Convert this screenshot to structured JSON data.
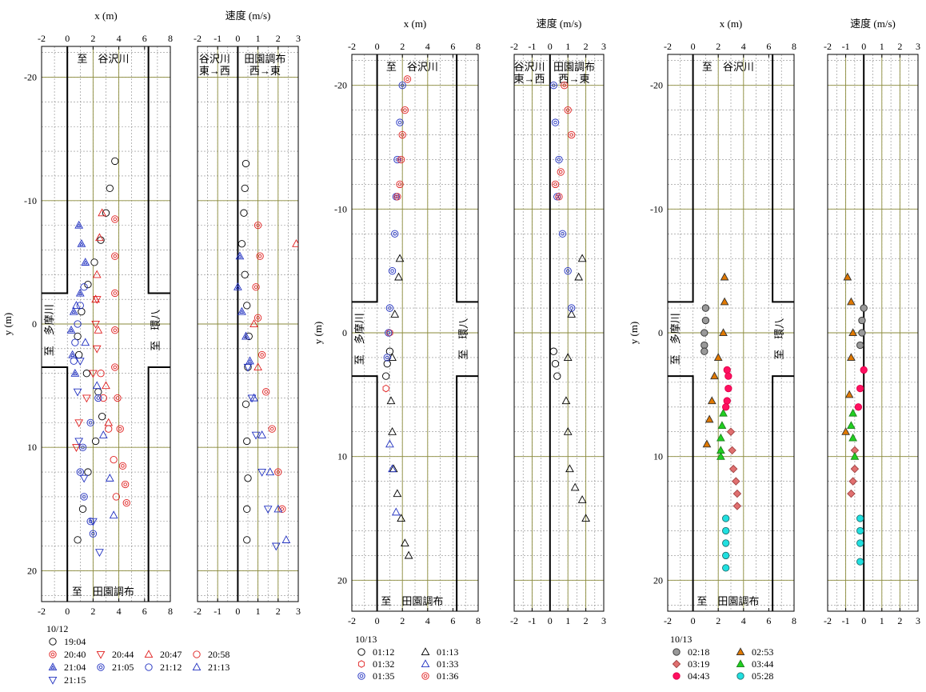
{
  "chart_data": [
    {
      "type": "scatter",
      "panel": "position",
      "xlabel": "x (m)",
      "ylabel": "y (m)",
      "xticks": [
        "-2",
        "0",
        "2",
        "4",
        "6",
        "8"
      ],
      "yticks": [
        "-20",
        "-10",
        "0",
        "10",
        "20"
      ],
      "xlim": [
        -2,
        8
      ],
      "ylim": [
        -22.5,
        22.5
      ],
      "road_labels": {
        "north": "至　谷沢川",
        "south": "至　田園調布",
        "west": "至　多摩川",
        "east": "至　環八"
      },
      "date": "10/12",
      "legend": [
        "19:04",
        "20:40",
        "20:44",
        "20:47",
        "20:58",
        "21:04",
        "21:05",
        "21:12",
        "21:13",
        "21:15"
      ],
      "series": [
        {
          "name": "19:04",
          "x": [
            3.7,
            3.3,
            3.0,
            2.6,
            2.1,
            1.6,
            1.1,
            0.8,
            0.9,
            1.5,
            2.4,
            2.7,
            2.2,
            1.6,
            1.2,
            0.8
          ],
          "y": [
            -13.2,
            -11.0,
            -9.0,
            -6.8,
            -5.0,
            -3.2,
            -1.0,
            1.0,
            2.5,
            4.0,
            5.5,
            7.5,
            9.5,
            12.0,
            15.0,
            17.5
          ]
        },
        {
          "name": "20:40",
          "x": [
            3.7,
            3.7,
            3.7,
            3.7,
            3.7,
            3.9,
            4.1,
            4.3,
            4.5,
            4.6
          ],
          "y": [
            -8.5,
            -5.5,
            -2.5,
            0.5,
            3.5,
            6.0,
            8.5,
            11.5,
            13.0,
            14.5
          ]
        },
        {
          "name": "20:44",
          "x": [
            2.3,
            2.2,
            2.3,
            2.0,
            1.5,
            0.9,
            0.7
          ],
          "y": [
            -2.0,
            0.0,
            2.0,
            4.0,
            6.0,
            8.0,
            10.0
          ]
        },
        {
          "name": "20:47",
          "x": [
            2.7,
            2.5,
            2.3,
            2.2,
            2.4,
            3.0,
            3.2
          ],
          "y": [
            -9.0,
            -7.0,
            -4.0,
            -2.0,
            0.5,
            5.0,
            8.0
          ]
        },
        {
          "name": "20:58",
          "x": [
            2.6,
            2.8,
            3.2,
            3.6,
            3.8
          ],
          "y": [
            4.0,
            6.0,
            8.5,
            11.0,
            14.0
          ]
        },
        {
          "name": "21:04",
          "x": [
            0.9,
            1.1,
            1.4,
            1.0,
            0.5,
            0.3,
            0.4,
            0.6
          ],
          "y": [
            -8.0,
            -6.5,
            -5.0,
            -2.5,
            -1.0,
            0.5,
            2.5,
            4.0
          ]
        },
        {
          "name": "21:05",
          "x": [
            2.4,
            1.8,
            1.2,
            1.0,
            1.3,
            1.8,
            2.0
          ],
          "y": [
            6.0,
            8.0,
            10.0,
            12.0,
            14.0,
            16.0,
            17.0
          ]
        },
        {
          "name": "21:12",
          "x": [
            1.3,
            1.0,
            0.8,
            0.6,
            0.5
          ],
          "y": [
            -3.0,
            -1.5,
            0.0,
            1.5,
            3.0
          ]
        },
        {
          "name": "21:13",
          "x": [
            0.7,
            1.4,
            2.3,
            2.8,
            3.3,
            3.6
          ],
          "y": [
            -1.5,
            1.5,
            5.0,
            9.0,
            12.5,
            15.5
          ]
        },
        {
          "name": "21:15",
          "x": [
            1.0,
            0.8,
            0.9,
            1.3,
            2.0,
            2.5
          ],
          "y": [
            3.0,
            5.5,
            9.5,
            12.5,
            16.0,
            18.5
          ]
        }
      ]
    },
    {
      "type": "scatter",
      "panel": "speed",
      "xlabel": "速度 (m/s)",
      "xticks": [
        "-2",
        "-1",
        "0",
        "1",
        "2",
        "3"
      ],
      "xlim": [
        -2,
        3
      ],
      "ylim": [
        -22.5,
        22.5
      ],
      "direction_labels": [
        "谷沢川",
        "東→西",
        "田園調布",
        "西→東"
      ],
      "series": [
        {
          "name": "19:04",
          "x": [
            0.4,
            0.35,
            0.3,
            0.2,
            0.35,
            0.45,
            0.55,
            0.5,
            0.4,
            0.45,
            0.5,
            0.45,
            0.45
          ],
          "y": [
            -13.0,
            -11.0,
            -9.0,
            -6.5,
            -4.0,
            -1.5,
            1.0,
            3.5,
            6.5,
            9.5,
            12.5,
            15.0,
            17.5
          ]
        },
        {
          "name": "20:40",
          "x": [
            1.0,
            1.1,
            0.9,
            1.0,
            1.2,
            1.4,
            1.7,
            2.0,
            2.2
          ],
          "y": [
            -8.0,
            -5.5,
            -3.0,
            -0.5,
            2.5,
            5.5,
            8.5,
            12.0,
            15.0
          ]
        },
        {
          "name": "20:47",
          "x": [
            2.9,
            0.8,
            1.0
          ],
          "y": [
            -6.5,
            0.0,
            3.5
          ]
        },
        {
          "name": "21:04",
          "x": [
            0.1,
            0.0,
            0.2,
            0.4,
            0.6
          ],
          "y": [
            -5.5,
            -3.0,
            -1.0,
            1.0,
            3.0
          ]
        },
        {
          "name": "21:13",
          "x": [
            0.8,
            1.2,
            1.6,
            2.0,
            2.4
          ],
          "y": [
            6.0,
            9.0,
            12.0,
            15.0,
            17.5
          ]
        },
        {
          "name": "21:15",
          "x": [
            0.5,
            0.7,
            0.9,
            1.2,
            1.5,
            1.9
          ],
          "y": [
            3.5,
            6.0,
            9.0,
            12.0,
            15.0,
            18.0
          ]
        }
      ]
    },
    {
      "type": "scatter",
      "panel": "position",
      "xlabel": "x (m)",
      "ylabel": "y (m)",
      "xticks": [
        "-2",
        "0",
        "2",
        "4",
        "6",
        "8"
      ],
      "yticks": [
        "-20",
        "-10",
        "0",
        "10",
        "20"
      ],
      "xlim": [
        -2,
        8
      ],
      "ylim": [
        -22.5,
        22.5
      ],
      "road_labels": {
        "north": "至　谷沢川",
        "south": "至　田園調布",
        "west": "至　多摩川",
        "east": "至　環八"
      },
      "date": "10/13",
      "legend": [
        "01:12",
        "01:13",
        "01:32",
        "01:33",
        "01:35",
        "01:36"
      ],
      "series": [
        {
          "name": "01:12",
          "x": [
            1.0,
            0.8,
            0.7
          ],
          "y": [
            1.5,
            2.5,
            3.5
          ]
        },
        {
          "name": "01:13",
          "x": [
            1.8,
            1.7,
            1.4,
            1.2,
            1.1,
            1.2,
            1.3,
            1.6,
            1.9,
            2.2,
            2.5
          ],
          "y": [
            -6.0,
            -4.5,
            -1.5,
            2.0,
            5.5,
            8.0,
            11.0,
            13.0,
            15.0,
            17.0,
            18.0
          ]
        },
        {
          "name": "01:32",
          "x": [
            1.0,
            0.7
          ],
          "y": [
            0.0,
            4.5
          ]
        },
        {
          "name": "01:33",
          "x": [
            1.0,
            1.2,
            1.5
          ],
          "y": [
            9.0,
            11.0,
            14.5
          ]
        },
        {
          "name": "01:35",
          "x": [
            2.0,
            1.8,
            1.6,
            1.5,
            1.4,
            1.2,
            1.0,
            0.9,
            0.8
          ],
          "y": [
            -20.0,
            -17.0,
            -14.0,
            -11.0,
            -8.0,
            -5.0,
            -2.0,
            0.0,
            2.0
          ]
        },
        {
          "name": "01:36",
          "x": [
            2.4,
            2.2,
            2.0,
            1.9,
            1.8,
            1.6
          ],
          "y": [
            -20.5,
            -18.0,
            -16.0,
            -14.0,
            -12.0,
            -11.0
          ]
        }
      ]
    },
    {
      "type": "scatter",
      "panel": "speed",
      "xlabel": "速度 (m/s)",
      "xticks": [
        "-2",
        "-1",
        "0",
        "1",
        "2",
        "3"
      ],
      "xlim": [
        -2,
        3
      ],
      "ylim": [
        -22.5,
        22.5
      ],
      "direction_labels": [
        "谷沢川",
        "東→西",
        "田園調布",
        "西→東"
      ],
      "series": [
        {
          "name": "01:12",
          "x": [
            0.2,
            0.3,
            0.4
          ],
          "y": [
            1.5,
            2.5,
            3.5
          ]
        },
        {
          "name": "01:13",
          "x": [
            1.8,
            1.6,
            1.2,
            1.0,
            0.9,
            1.0,
            1.1,
            1.4,
            1.8,
            2.0
          ],
          "y": [
            -6.0,
            -4.5,
            -1.5,
            2.0,
            5.5,
            8.0,
            11.0,
            12.5,
            13.5,
            15.0
          ]
        },
        {
          "name": "01:35",
          "x": [
            0.2,
            0.3,
            0.5,
            0.4,
            0.7,
            1.0,
            1.2
          ],
          "y": [
            -20.0,
            -17.0,
            -14.0,
            -11.0,
            -8.0,
            -5.0,
            -2.0
          ]
        },
        {
          "name": "01:36",
          "x": [
            0.8,
            1.0,
            1.2,
            0.6,
            0.3,
            0.5
          ],
          "y": [
            -20.0,
            -18.0,
            -16.0,
            -13.0,
            -12.0,
            -11.0
          ]
        }
      ]
    },
    {
      "type": "scatter",
      "panel": "position",
      "xlabel": "x (m)",
      "ylabel": "y (m)",
      "xticks": [
        "-2",
        "0",
        "2",
        "4",
        "6",
        "8"
      ],
      "yticks": [
        "-20",
        "-10",
        "0",
        "10",
        "20"
      ],
      "xlim": [
        -2,
        8
      ],
      "ylim": [
        -22.5,
        22.5
      ],
      "road_labels": {
        "north": "至　谷沢川",
        "south": "至　田園調布",
        "west": "至　多摩川",
        "east": "至　環八"
      },
      "date": "10/13",
      "legend": [
        "02:18",
        "02:53",
        "03:19",
        "03:44",
        "04:43",
        "05:28"
      ],
      "series": [
        {
          "name": "02:18",
          "x": [
            1.0,
            1.0,
            0.9,
            0.9,
            0.9
          ],
          "y": [
            -2.0,
            -1.0,
            0.0,
            1.0,
            1.5
          ]
        },
        {
          "name": "02:53",
          "x": [
            2.5,
            2.5,
            2.4,
            2.0,
            1.7,
            1.5,
            1.3,
            1.1
          ],
          "y": [
            -4.5,
            -2.5,
            0.0,
            2.0,
            3.5,
            5.5,
            7.0,
            9.0
          ]
        },
        {
          "name": "03:19",
          "x": [
            3.0,
            3.1,
            3.2,
            3.4,
            3.5,
            3.5
          ],
          "y": [
            8.0,
            9.5,
            11.0,
            12.0,
            13.0,
            14.0
          ]
        },
        {
          "name": "03:44",
          "x": [
            2.4,
            2.3,
            2.2,
            2.2,
            2.2
          ],
          "y": [
            6.5,
            7.5,
            8.5,
            9.5,
            10.0
          ]
        },
        {
          "name": "04:43",
          "x": [
            2.7,
            2.8,
            2.8,
            2.7,
            2.6
          ],
          "y": [
            3.0,
            3.5,
            4.5,
            5.5,
            6.0
          ]
        },
        {
          "name": "05:28",
          "x": [
            2.6,
            2.6,
            2.6,
            2.6,
            2.6
          ],
          "y": [
            15.0,
            16.0,
            17.0,
            18.0,
            19.0
          ]
        }
      ]
    },
    {
      "type": "scatter",
      "panel": "speed",
      "xlabel": "速度 (m/s)",
      "xticks": [
        "-2",
        "-1",
        "0",
        "1",
        "2",
        "3"
      ],
      "xlim": [
        -2,
        3
      ],
      "ylim": [
        -22.5,
        22.5
      ],
      "series": [
        {
          "name": "02:18",
          "x": [
            0.0,
            -0.1,
            -0.1,
            -0.2
          ],
          "y": [
            -2.0,
            -1.0,
            0.0,
            1.0
          ]
        },
        {
          "name": "02:53",
          "x": [
            -0.9,
            -0.7,
            -0.6,
            -0.7,
            -0.8,
            -1.0
          ],
          "y": [
            -4.5,
            -2.5,
            0.0,
            2.0,
            5.0,
            8.0
          ]
        },
        {
          "name": "03:19",
          "x": [
            -0.5,
            -0.5,
            -0.6,
            -0.7
          ],
          "y": [
            9.5,
            11.0,
            12.0,
            13.0
          ]
        },
        {
          "name": "03:44",
          "x": [
            -0.6,
            -0.7,
            -0.6,
            -0.5
          ],
          "y": [
            6.5,
            7.5,
            8.5,
            10.0
          ]
        },
        {
          "name": "04:43",
          "x": [
            0.0,
            -0.2,
            -0.3
          ],
          "y": [
            3.0,
            4.5,
            6.0
          ]
        },
        {
          "name": "05:28",
          "x": [
            -0.2,
            -0.2,
            -0.2,
            -0.2
          ],
          "y": [
            15.0,
            16.0,
            17.0,
            18.5
          ]
        }
      ]
    }
  ]
}
